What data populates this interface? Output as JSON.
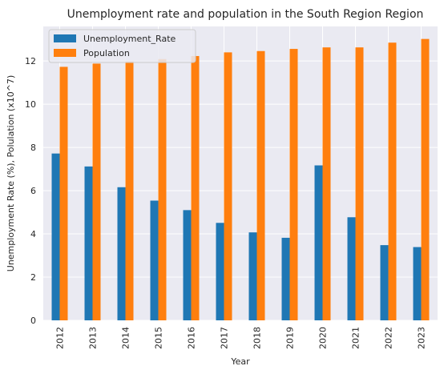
{
  "chart_data": {
    "type": "bar",
    "title": "Unemployment rate and population in the South Region Region",
    "xlabel": "Year",
    "ylabel": "Unemployment Rate (%), Polulation (x10^7)",
    "categories": [
      "2012",
      "2013",
      "2014",
      "2015",
      "2016",
      "2017",
      "2018",
      "2019",
      "2020",
      "2021",
      "2022",
      "2023"
    ],
    "series": [
      {
        "name": "Unemployment_Rate",
        "color": "#1f77b4",
        "values": [
          7.72,
          7.12,
          6.16,
          5.54,
          5.1,
          4.51,
          4.07,
          3.82,
          7.17,
          4.77,
          3.48,
          3.39
        ]
      },
      {
        "name": "Population",
        "color": "#ff7f0e",
        "values": [
          11.73,
          11.88,
          11.98,
          12.09,
          12.23,
          12.4,
          12.46,
          12.56,
          12.63,
          12.63,
          12.85,
          13.02
        ]
      }
    ],
    "ylim": [
      0,
      13.6
    ],
    "yticks": [
      0,
      2,
      4,
      6,
      8,
      10,
      12
    ],
    "grid": true,
    "background": "#eaeaf2",
    "legend_position": "top-left"
  }
}
